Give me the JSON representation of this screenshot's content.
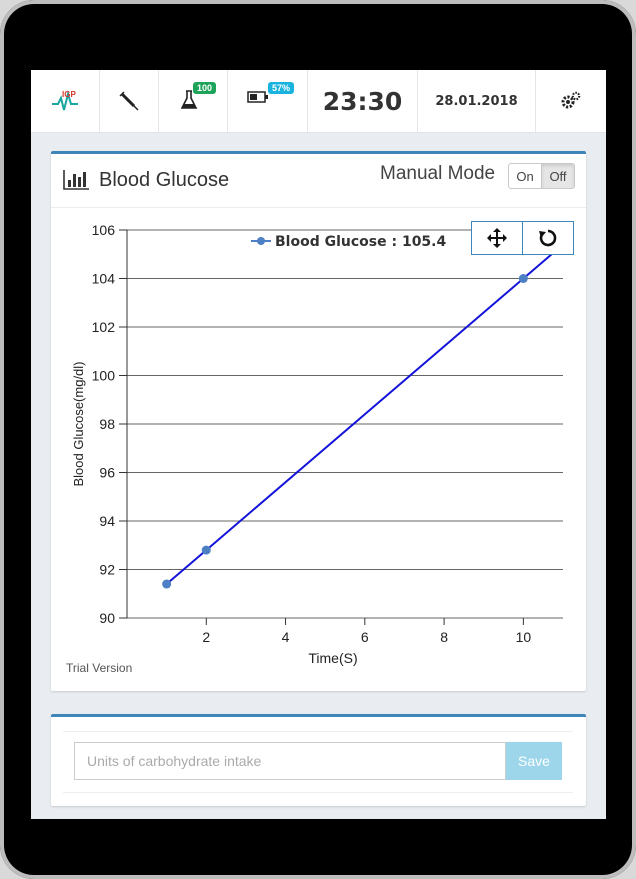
{
  "topbar": {
    "logo_text": "IGP",
    "vial_badge": "100",
    "battery_badge": "57%",
    "time": "23:30",
    "date": "28.01.2018",
    "icons": [
      "logo-icon",
      "syringe-icon",
      "vial-icon",
      "battery-icon",
      "gear-icon"
    ],
    "badge_colors": {
      "vial": "#1ea35a",
      "battery": "#1ab3e0"
    }
  },
  "panel": {
    "title": "Blood Glucose",
    "mode_label": "Manual Mode",
    "toggle_on": "On",
    "toggle_off": "Off",
    "trial_text": "Trial Version",
    "chart_buttons": [
      "move-icon",
      "reset-icon"
    ]
  },
  "chart_data": {
    "type": "line",
    "xlabel": "Time(S)",
    "ylabel": "Blood Glucose(mg/dl)",
    "xlim": [
      0,
      11
    ],
    "ylim": [
      90,
      106
    ],
    "x_ticks": [
      2,
      4,
      6,
      8,
      10
    ],
    "y_ticks": [
      90,
      92,
      94,
      96,
      98,
      100,
      102,
      104,
      106
    ],
    "grid": "horizontal",
    "legend_text": "Blood Glucose : 105.4",
    "series": [
      {
        "name": "Blood Glucose",
        "color": "#1414d9",
        "marker_color": "#4d7fc4",
        "points": [
          {
            "x": 1,
            "y": 91.4
          },
          {
            "x": 2,
            "y": 92.8
          },
          {
            "x": 10,
            "y": 104
          },
          {
            "x": 11,
            "y": 105.4
          }
        ],
        "marker_x": [
          1,
          2,
          10
        ]
      }
    ]
  },
  "carbs": {
    "placeholder": "Units of carbohydrate intake",
    "save_label": "Save"
  }
}
